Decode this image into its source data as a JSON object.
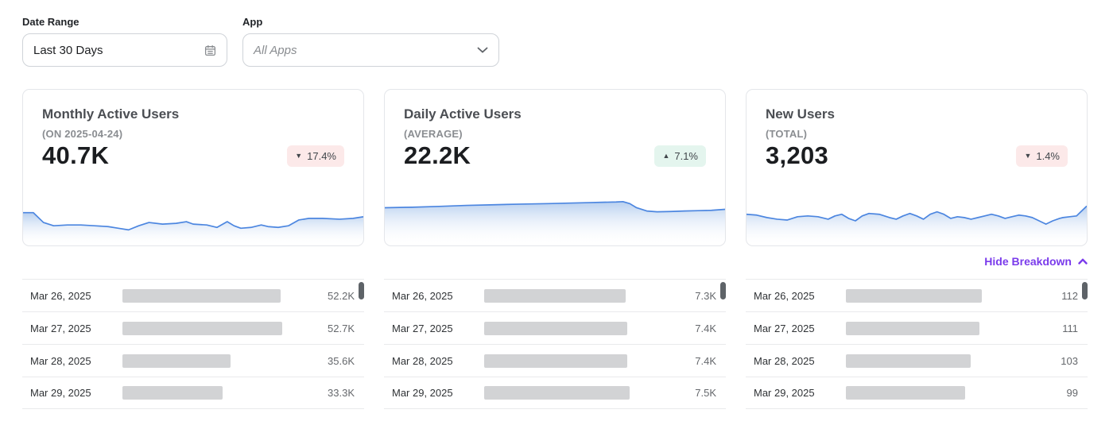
{
  "filters": {
    "date_range": {
      "label": "Date Range",
      "value": "Last 30 Days",
      "icon": "calendar-icon"
    },
    "app": {
      "label": "App",
      "placeholder": "All Apps",
      "icon": "chevron-down-icon"
    }
  },
  "breakdown_toggle": {
    "label": "Hide Breakdown",
    "icon": "chevron-up-icon",
    "state": "expanded"
  },
  "icons": {
    "triangle_up": "▲",
    "triangle_down": "▼"
  },
  "colors": {
    "accent_purple": "#7A3BEB",
    "spark_line": "#4C86E0",
    "spark_fill_top": "#7DA8E2",
    "badge_down_bg": "#FCE9E9",
    "badge_up_bg": "#E4F5EE",
    "bar_gray": "#D2D3D5"
  },
  "cards": [
    {
      "title": "Monthly Active Users",
      "subtitle": "(ON 2025-04-24)",
      "value": "40.7K",
      "delta": {
        "value": "17.4%",
        "direction": "down"
      },
      "spark": [
        [
          0,
          10
        ],
        [
          3,
          10
        ],
        [
          6,
          16
        ],
        [
          9,
          18
        ],
        [
          13,
          17.5
        ],
        [
          17,
          17.5
        ],
        [
          21,
          18
        ],
        [
          25,
          18.5
        ],
        [
          28,
          19.5
        ],
        [
          31,
          20.5
        ],
        [
          34,
          18
        ],
        [
          37,
          16
        ],
        [
          41,
          17
        ],
        [
          45,
          16.5
        ],
        [
          48,
          15.5
        ],
        [
          50,
          17
        ],
        [
          54,
          17.5
        ],
        [
          57,
          19
        ],
        [
          60,
          15.5
        ],
        [
          62,
          18
        ],
        [
          64,
          19.5
        ],
        [
          67,
          19
        ],
        [
          70,
          17.5
        ],
        [
          72,
          18.5
        ],
        [
          75,
          19
        ],
        [
          78,
          18
        ],
        [
          81,
          14.5
        ],
        [
          84,
          13.5
        ],
        [
          88,
          13.5
        ],
        [
          93,
          14
        ],
        [
          97,
          13.5
        ],
        [
          100,
          12.5
        ]
      ]
    },
    {
      "title": "Daily Active Users",
      "subtitle": "(AVERAGE)",
      "value": "22.2K",
      "delta": {
        "value": "7.1%",
        "direction": "up"
      },
      "spark": [
        [
          0,
          7
        ],
        [
          8,
          6.7
        ],
        [
          16,
          6.2
        ],
        [
          24,
          5.6
        ],
        [
          32,
          5.2
        ],
        [
          40,
          4.8
        ],
        [
          48,
          4.5
        ],
        [
          54,
          4.2
        ],
        [
          60,
          3.9
        ],
        [
          64,
          3.7
        ],
        [
          68,
          3.5
        ],
        [
          70,
          3.3
        ],
        [
          72,
          4.5
        ],
        [
          74,
          7
        ],
        [
          77,
          9
        ],
        [
          80,
          9.5
        ],
        [
          84,
          9.3
        ],
        [
          88,
          9
        ],
        [
          92,
          8.8
        ],
        [
          96,
          8.6
        ],
        [
          100,
          8
        ]
      ]
    },
    {
      "title": "New Users",
      "subtitle": "(TOTAL)",
      "value": "3,203",
      "delta": {
        "value": "1.4%",
        "direction": "down"
      },
      "spark": [
        [
          0,
          11
        ],
        [
          3,
          11.5
        ],
        [
          6,
          13
        ],
        [
          9,
          14
        ],
        [
          12,
          14.5
        ],
        [
          15,
          12.5
        ],
        [
          18,
          12
        ],
        [
          21,
          12.5
        ],
        [
          24,
          14
        ],
        [
          26,
          12
        ],
        [
          28,
          11
        ],
        [
          30,
          13.5
        ],
        [
          32,
          15
        ],
        [
          34,
          12
        ],
        [
          36,
          10.5
        ],
        [
          39,
          11
        ],
        [
          42,
          13
        ],
        [
          44,
          14
        ],
        [
          46,
          12
        ],
        [
          48,
          10.5
        ],
        [
          50,
          12
        ],
        [
          52,
          14
        ],
        [
          54,
          11
        ],
        [
          56,
          9.5
        ],
        [
          58,
          11
        ],
        [
          60,
          13.5
        ],
        [
          62,
          12.5
        ],
        [
          64,
          13
        ],
        [
          66,
          14
        ],
        [
          68,
          13
        ],
        [
          70,
          12
        ],
        [
          72,
          11
        ],
        [
          74,
          12
        ],
        [
          76,
          13.5
        ],
        [
          78,
          12.5
        ],
        [
          80,
          11.5
        ],
        [
          82,
          12
        ],
        [
          84,
          13
        ],
        [
          86,
          15
        ],
        [
          88,
          17
        ],
        [
          90,
          15
        ],
        [
          92,
          13.5
        ],
        [
          93,
          13
        ],
        [
          95,
          12.5
        ],
        [
          97,
          12
        ],
        [
          98,
          10
        ],
        [
          100,
          6
        ]
      ]
    }
  ],
  "tables": [
    {
      "rows": [
        {
          "date": "Mar 26, 2025",
          "value": "52.2K",
          "bar_pct": 85
        },
        {
          "date": "Mar 27, 2025",
          "value": "52.7K",
          "bar_pct": 86
        },
        {
          "date": "Mar 28, 2025",
          "value": "35.6K",
          "bar_pct": 58
        },
        {
          "date": "Mar 29, 2025",
          "value": "33.3K",
          "bar_pct": 54
        }
      ]
    },
    {
      "rows": [
        {
          "date": "Mar 26, 2025",
          "value": "7.3K",
          "bar_pct": 76
        },
        {
          "date": "Mar 27, 2025",
          "value": "7.4K",
          "bar_pct": 77
        },
        {
          "date": "Mar 28, 2025",
          "value": "7.4K",
          "bar_pct": 77
        },
        {
          "date": "Mar 29, 2025",
          "value": "7.5K",
          "bar_pct": 78
        }
      ]
    },
    {
      "rows": [
        {
          "date": "Mar 26, 2025",
          "value": "112",
          "bar_pct": 73
        },
        {
          "date": "Mar 27, 2025",
          "value": "111",
          "bar_pct": 72
        },
        {
          "date": "Mar 28, 2025",
          "value": "103",
          "bar_pct": 67
        },
        {
          "date": "Mar 29, 2025",
          "value": "99",
          "bar_pct": 64
        }
      ]
    }
  ]
}
